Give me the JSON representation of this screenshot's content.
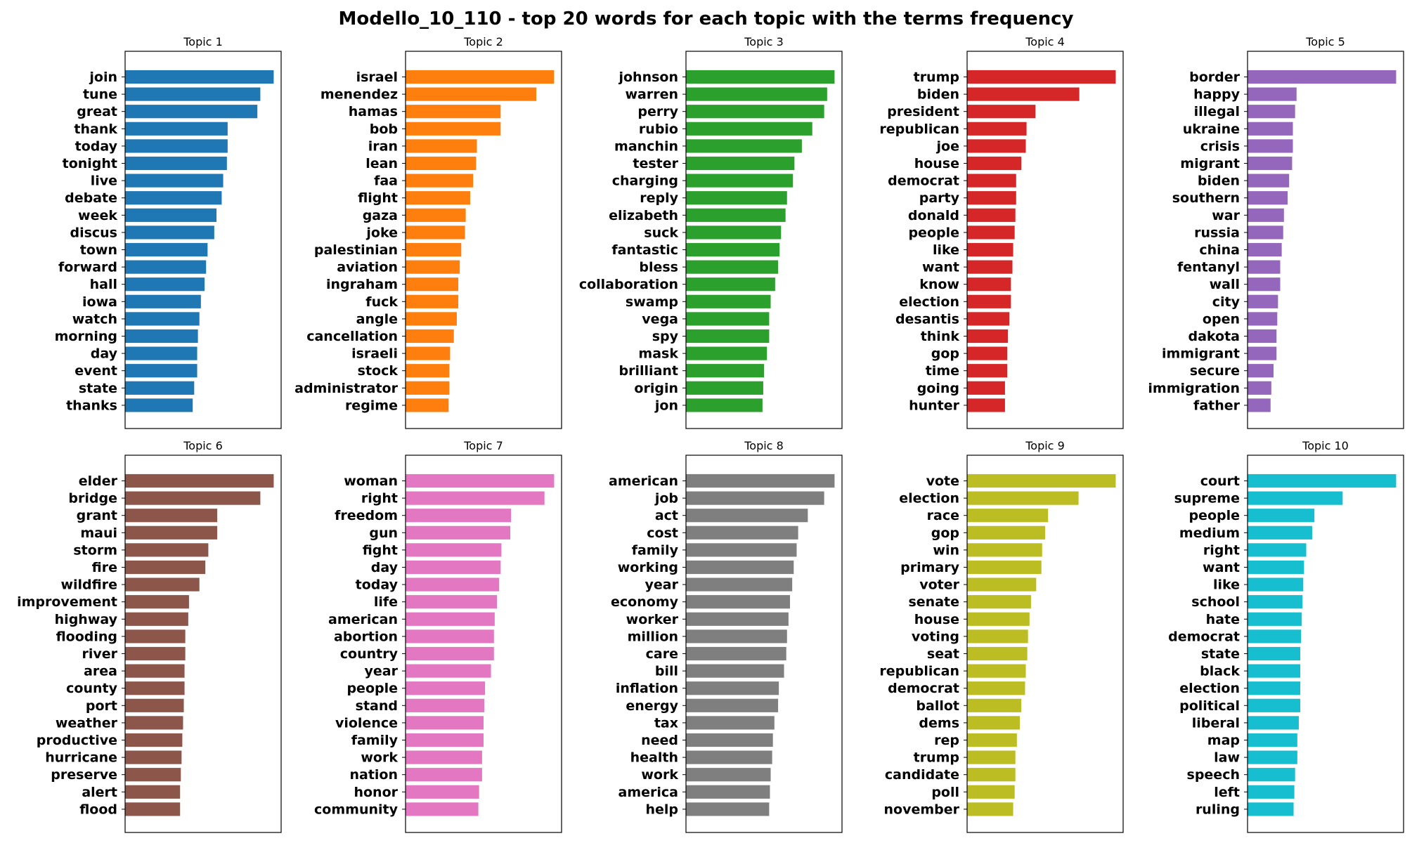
{
  "figure": {
    "title": "Modello_10_110 - top 20 words for each topic with the terms frequency"
  },
  "chart_data": [
    {
      "type": "bar",
      "orientation": "horizontal",
      "title": "Topic 1",
      "color": "#1f77b4",
      "categories": [
        "join",
        "tune",
        "great",
        "thank",
        "today",
        "tonight",
        "live",
        "debate",
        "week",
        "discus",
        "town",
        "forward",
        "hall",
        "iowa",
        "watch",
        "morning",
        "day",
        "event",
        "state",
        "thanks"
      ],
      "values": [
        1.0,
        0.91,
        0.89,
        0.69,
        0.69,
        0.685,
        0.66,
        0.65,
        0.615,
        0.6,
        0.555,
        0.545,
        0.535,
        0.51,
        0.5,
        0.49,
        0.485,
        0.485,
        0.465,
        0.455
      ],
      "xlim": [
        0,
        1.05
      ],
      "x_ticks": "none"
    },
    {
      "type": "bar",
      "orientation": "horizontal",
      "title": "Topic 2",
      "color": "#ff7f0e",
      "categories": [
        "israel",
        "menendez",
        "hamas",
        "bob",
        "iran",
        "lean",
        "faa",
        "flight",
        "gaza",
        "joke",
        "palestinian",
        "aviation",
        "ingraham",
        "fuck",
        "angle",
        "cancellation",
        "israeli",
        "stock",
        "administrator",
        "regime"
      ],
      "values": [
        1.0,
        0.88,
        0.64,
        0.64,
        0.48,
        0.475,
        0.455,
        0.435,
        0.405,
        0.4,
        0.375,
        0.365,
        0.355,
        0.355,
        0.345,
        0.325,
        0.3,
        0.295,
        0.295,
        0.29
      ],
      "xlim": [
        0,
        1.05
      ],
      "x_ticks": "none"
    },
    {
      "type": "bar",
      "orientation": "horizontal",
      "title": "Topic 3",
      "color": "#2ca02c",
      "categories": [
        "johnson",
        "warren",
        "perry",
        "rubio",
        "manchin",
        "tester",
        "charging",
        "reply",
        "elizabeth",
        "suck",
        "fantastic",
        "bless",
        "collaboration",
        "swamp",
        "vega",
        "spy",
        "mask",
        "brilliant",
        "origin",
        "jon"
      ],
      "values": [
        1.0,
        0.95,
        0.93,
        0.85,
        0.78,
        0.73,
        0.72,
        0.68,
        0.67,
        0.64,
        0.63,
        0.62,
        0.6,
        0.57,
        0.56,
        0.56,
        0.545,
        0.525,
        0.52,
        0.515
      ],
      "xlim": [
        0,
        1.05
      ],
      "x_ticks": "none"
    },
    {
      "type": "bar",
      "orientation": "horizontal",
      "title": "Topic 4",
      "color": "#d62728",
      "categories": [
        "trump",
        "biden",
        "president",
        "republican",
        "joe",
        "house",
        "democrat",
        "party",
        "donald",
        "people",
        "like",
        "want",
        "know",
        "election",
        "desantis",
        "think",
        "gop",
        "time",
        "going",
        "hunter"
      ],
      "values": [
        1.0,
        0.755,
        0.46,
        0.4,
        0.395,
        0.365,
        0.33,
        0.33,
        0.325,
        0.32,
        0.31,
        0.305,
        0.295,
        0.295,
        0.285,
        0.275,
        0.27,
        0.27,
        0.255,
        0.255
      ],
      "xlim": [
        0,
        1.05
      ],
      "x_ticks": "none"
    },
    {
      "type": "bar",
      "orientation": "horizontal",
      "title": "Topic 5",
      "color": "#9467bd",
      "categories": [
        "border",
        "happy",
        "illegal",
        "ukraine",
        "crisis",
        "migrant",
        "biden",
        "southern",
        "war",
        "russia",
        "china",
        "fentanyl",
        "wall",
        "city",
        "open",
        "dakota",
        "immigrant",
        "secure",
        "immigration",
        "father"
      ],
      "values": [
        1.0,
        0.33,
        0.32,
        0.305,
        0.305,
        0.3,
        0.28,
        0.27,
        0.245,
        0.24,
        0.23,
        0.22,
        0.22,
        0.205,
        0.2,
        0.195,
        0.195,
        0.175,
        0.16,
        0.155
      ],
      "xlim": [
        0,
        1.05
      ],
      "x_ticks": "none"
    },
    {
      "type": "bar",
      "orientation": "horizontal",
      "title": "Topic 6",
      "color": "#8c564b",
      "categories": [
        "elder",
        "bridge",
        "grant",
        "maui",
        "storm",
        "fire",
        "wildfire",
        "improvement",
        "highway",
        "flooding",
        "river",
        "area",
        "county",
        "port",
        "weather",
        "productive",
        "hurricane",
        "preserve",
        "alert",
        "flood"
      ],
      "values": [
        1.0,
        0.91,
        0.62,
        0.62,
        0.56,
        0.54,
        0.5,
        0.43,
        0.425,
        0.405,
        0.405,
        0.4,
        0.4,
        0.395,
        0.39,
        0.385,
        0.38,
        0.375,
        0.37,
        0.37
      ],
      "xlim": [
        0,
        1.05
      ],
      "x_ticks": "none"
    },
    {
      "type": "bar",
      "orientation": "horizontal",
      "title": "Topic 7",
      "color": "#e377c2",
      "categories": [
        "woman",
        "right",
        "freedom",
        "gun",
        "fight",
        "day",
        "today",
        "life",
        "american",
        "abortion",
        "country",
        "year",
        "people",
        "stand",
        "violence",
        "family",
        "work",
        "nation",
        "honor",
        "community"
      ],
      "values": [
        1.0,
        0.935,
        0.71,
        0.705,
        0.645,
        0.64,
        0.63,
        0.615,
        0.6,
        0.595,
        0.595,
        0.575,
        0.535,
        0.53,
        0.525,
        0.525,
        0.515,
        0.515,
        0.495,
        0.49
      ],
      "xlim": [
        0,
        1.05
      ],
      "x_ticks": "none"
    },
    {
      "type": "bar",
      "orientation": "horizontal",
      "title": "Topic 8",
      "color": "#7f7f7f",
      "categories": [
        "american",
        "job",
        "act",
        "cost",
        "family",
        "working",
        "year",
        "economy",
        "worker",
        "million",
        "care",
        "bill",
        "inflation",
        "energy",
        "tax",
        "need",
        "health",
        "work",
        "america",
        "help"
      ],
      "values": [
        1.0,
        0.93,
        0.82,
        0.755,
        0.745,
        0.725,
        0.715,
        0.7,
        0.69,
        0.68,
        0.675,
        0.66,
        0.625,
        0.62,
        0.595,
        0.585,
        0.58,
        0.57,
        0.565,
        0.56
      ],
      "xlim": [
        0,
        1.05
      ],
      "x_ticks": "none"
    },
    {
      "type": "bar",
      "orientation": "horizontal",
      "title": "Topic 9",
      "color": "#bcbd22",
      "categories": [
        "vote",
        "election",
        "race",
        "gop",
        "win",
        "primary",
        "voter",
        "senate",
        "house",
        "voting",
        "seat",
        "republican",
        "democrat",
        "ballot",
        "dems",
        "rep",
        "trump",
        "candidate",
        "poll",
        "november"
      ],
      "values": [
        1.0,
        0.75,
        0.545,
        0.525,
        0.505,
        0.5,
        0.465,
        0.43,
        0.42,
        0.41,
        0.405,
        0.395,
        0.39,
        0.365,
        0.355,
        0.335,
        0.325,
        0.325,
        0.32,
        0.31
      ],
      "xlim": [
        0,
        1.05
      ],
      "x_ticks": "none"
    },
    {
      "type": "bar",
      "orientation": "horizontal",
      "title": "Topic 10",
      "color": "#17becf",
      "categories": [
        "court",
        "supreme",
        "people",
        "medium",
        "right",
        "want",
        "like",
        "school",
        "hate",
        "democrat",
        "state",
        "black",
        "election",
        "political",
        "liberal",
        "map",
        "law",
        "speech",
        "left",
        "ruling"
      ],
      "values": [
        1.0,
        0.64,
        0.45,
        0.435,
        0.395,
        0.38,
        0.375,
        0.37,
        0.365,
        0.36,
        0.355,
        0.355,
        0.355,
        0.355,
        0.345,
        0.335,
        0.335,
        0.32,
        0.315,
        0.31
      ],
      "xlim": [
        0,
        1.05
      ],
      "x_ticks": "none"
    }
  ]
}
